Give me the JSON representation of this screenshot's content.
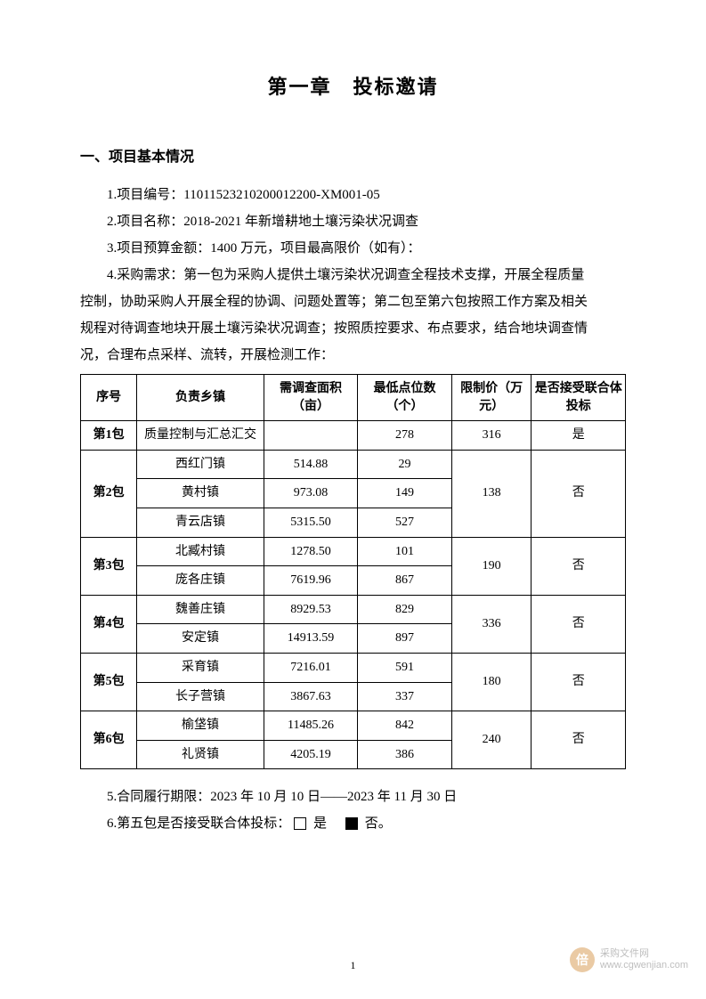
{
  "chapter_title": "第一章　投标邀请",
  "section1_heading": "一、项目基本情况",
  "items": {
    "p1": "1.项目编号：11011523210200012200-XM001-05",
    "p2": "2.项目名称：2018-2021 年新增耕地土壤污染状况调查",
    "p3": "3.项目预算金额：1400 万元，项目最高限价（如有）：",
    "p4_lead": "4.采购需求：第一包为采购人提供土壤污染状况调查全程技术支撑，开展全程质量",
    "p4_l2": "控制，协助采购人开展全程的协调、问题处置等；第二包至第六包按照工作方案及相关",
    "p4_l3": "规程对待调查地块开展土壤污染状况调查；按照质控要求、布点要求，结合地块调查情",
    "p4_l4": "况，合理布点采样、流转，开展检测工作：",
    "p5": "5.合同履行期限：2023 年 10 月 10 日——2023 年 11 月 30 日",
    "p6_prefix": "6.第五包是否接受联合体投标：",
    "p6_yes": " 是　",
    "p6_no": " 否。"
  },
  "table": {
    "headers": {
      "seq": "序号",
      "town": "负责乡镇",
      "area": "需调查面积（亩）",
      "points": "最低点位数（个）",
      "price": "限制价（万元）",
      "accept": "是否接受联合体投标"
    },
    "packages": [
      {
        "seq": "第1包",
        "rows": [
          {
            "town": "质量控制与汇总汇交",
            "area": "",
            "points": "278"
          }
        ],
        "price": "316",
        "accept": "是"
      },
      {
        "seq": "第2包",
        "rows": [
          {
            "town": "西红门镇",
            "area": "514.88",
            "points": "29"
          },
          {
            "town": "黄村镇",
            "area": "973.08",
            "points": "149"
          },
          {
            "town": "青云店镇",
            "area": "5315.50",
            "points": "527"
          }
        ],
        "price": "138",
        "accept": "否"
      },
      {
        "seq": "第3包",
        "rows": [
          {
            "town": "北臧村镇",
            "area": "1278.50",
            "points": "101"
          },
          {
            "town": "庞各庄镇",
            "area": "7619.96",
            "points": "867"
          }
        ],
        "price": "190",
        "accept": "否"
      },
      {
        "seq": "第4包",
        "rows": [
          {
            "town": "魏善庄镇",
            "area": "8929.53",
            "points": "829"
          },
          {
            "town": "安定镇",
            "area": "14913.59",
            "points": "897"
          }
        ],
        "price": "336",
        "accept": "否"
      },
      {
        "seq": "第5包",
        "rows": [
          {
            "town": "采育镇",
            "area": "7216.01",
            "points": "591"
          },
          {
            "town": "长子营镇",
            "area": "3867.63",
            "points": "337"
          }
        ],
        "price": "180",
        "accept": "否"
      },
      {
        "seq": "第6包",
        "rows": [
          {
            "town": "榆垡镇",
            "area": "11485.26",
            "points": "842"
          },
          {
            "town": "礼贤镇",
            "area": "4205.19",
            "points": "386"
          }
        ],
        "price": "240",
        "accept": "否"
      }
    ]
  },
  "page_number": "1",
  "watermark": {
    "logo_char": "倍",
    "line1": "采购文件网",
    "line2": "www.cgwenjian.com"
  },
  "colors": {
    "text": "#000000",
    "background": "#ffffff",
    "border": "#000000",
    "wm_logo_bg": "#d9a05a",
    "wm_text": "#898989"
  }
}
